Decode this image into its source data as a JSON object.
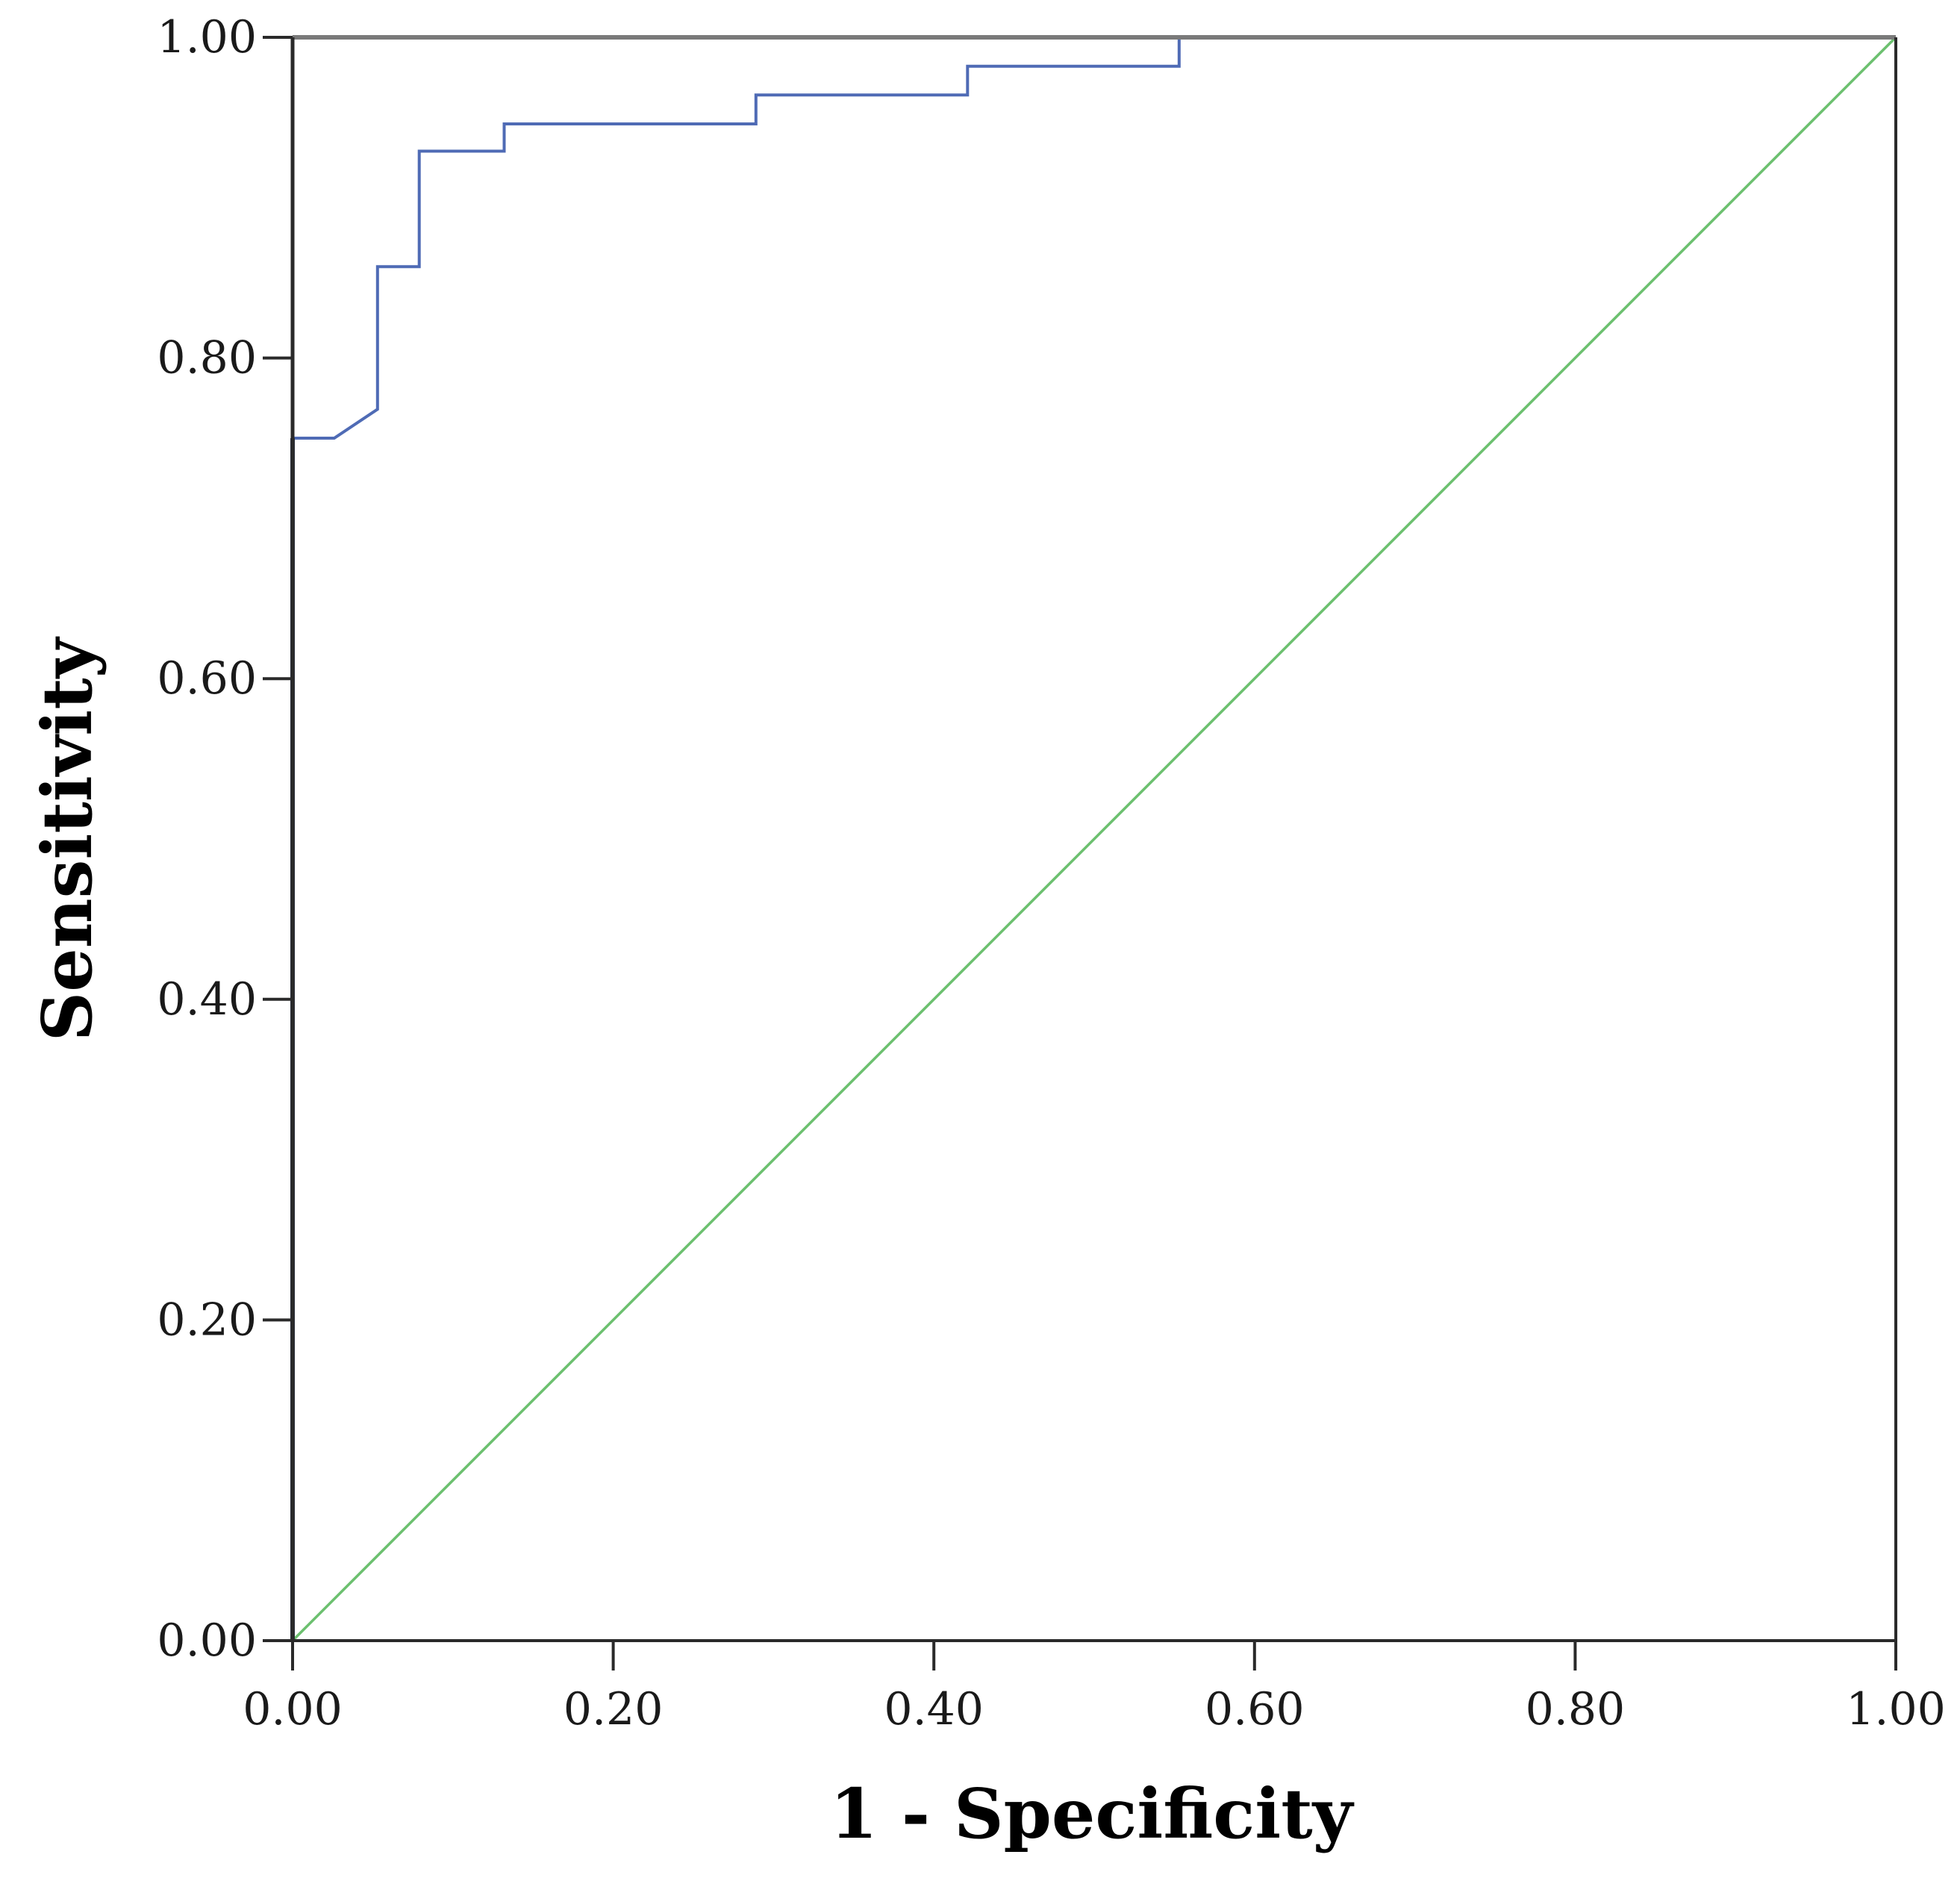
{
  "chart_data": {
    "type": "line",
    "title": "",
    "xlabel": "1 - Specificity",
    "ylabel": "Sensitivity",
    "xlim": [
      0,
      1
    ],
    "ylim": [
      0,
      1
    ],
    "grid": false,
    "xticks": [
      "0.00",
      "0.20",
      "0.40",
      "0.60",
      "0.80",
      "1.00"
    ],
    "yticks": [
      "0.00",
      "0.20",
      "0.40",
      "0.60",
      "0.80",
      "1.00"
    ],
    "series": [
      {
        "color": "#4f6bb5",
        "x": [
          0.0,
          0.0,
          0.026,
          0.053,
          0.053,
          0.079,
          0.079,
          0.132,
          0.132,
          0.289,
          0.289,
          0.421,
          0.421,
          0.553,
          0.553,
          1.0
        ],
        "y": [
          0.0,
          0.75,
          0.75,
          0.768,
          0.857,
          0.857,
          0.929,
          0.929,
          0.946,
          0.946,
          0.964,
          0.964,
          0.982,
          0.982,
          1.0,
          1.0
        ]
      },
      {
        "color": "#6cc06f",
        "x": [
          0,
          1
        ],
        "y": [
          0,
          1
        ]
      }
    ]
  }
}
